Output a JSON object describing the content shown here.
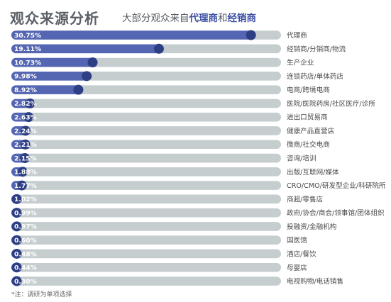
{
  "title": "观众来源分析",
  "subtitle_prefix": "大部分观众来自",
  "subtitle_highlight_1": "代理商",
  "subtitle_connector": "和",
  "subtitle_highlight_2": "经销商",
  "footnote": "*注：调研为单项选择",
  "colors": {
    "bar_fill": "#5465b2",
    "bar_track": "#c5cdcf",
    "marker": "#2d3e84",
    "value_text": "#ffffff",
    "label_text": "#4a4a4a"
  },
  "chart_data": {
    "type": "bar",
    "orientation": "horizontal",
    "categories": [
      "代理商",
      "经销商/分销商/物流",
      "生产企业",
      "连锁药店/单体药店",
      "电商/跨境电商",
      "医院/医院药房/社区医疗/诊所",
      "进出口贸易商",
      "健康产品直营店",
      "微商/社交电商",
      "咨询/培训",
      "出版/互联网/媒体",
      "CRO/CMO/研发型企业/科研院所",
      "商超/零售店",
      "政府/协会/商会/领事馆/团体组织",
      "投融资/金融机构",
      "国医馆",
      "酒店/餐饮",
      "母婴店",
      "电视购物/电话销售"
    ],
    "values": [
      30.75,
      19.11,
      10.73,
      9.98,
      8.92,
      2.82,
      2.63,
      2.24,
      2.21,
      2.15,
      1.88,
      1.77,
      1.02,
      0.99,
      0.97,
      0.6,
      0.48,
      0.44,
      0.3
    ],
    "value_labels": [
      "30.75%",
      "19.11%",
      "10.73%",
      "9.98%",
      "8.92%",
      "2.82%",
      "2.63%",
      "2.24%",
      "2.21%",
      "2.15%",
      "1.88%",
      "1.77%",
      "1.02%",
      "0.99%",
      "0.97%",
      "0.60%",
      "0.48%",
      "0.44%",
      "0.30%"
    ],
    "unit": "%",
    "grid": false,
    "legend": "none"
  }
}
